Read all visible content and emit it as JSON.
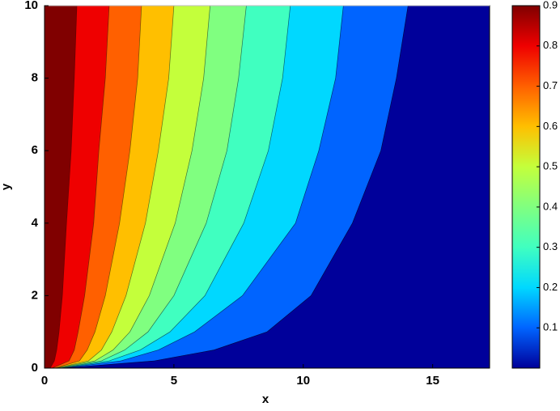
{
  "chart_data": {
    "type": "contour",
    "x_label": "x",
    "y_label": "y",
    "xlim": [
      0,
      17.2
    ],
    "ylim": [
      0,
      10
    ],
    "xticks": [
      0,
      5,
      10,
      15
    ],
    "yticks": [
      0,
      2,
      4,
      6,
      8,
      10
    ],
    "y_samples": [
      10,
      8,
      6,
      4,
      2,
      1,
      0.5,
      0.2,
      0
    ],
    "contours": [
      {
        "level": 0.9,
        "x": [
          1.25,
          1.15,
          1.03,
          0.85,
          0.69,
          0.56,
          0.47,
          0.38,
          0.22
        ]
      },
      {
        "level": 0.8,
        "x": [
          2.5,
          2.35,
          2.1,
          1.9,
          1.55,
          1.3,
          1.15,
          0.95,
          0.3
        ]
      },
      {
        "level": 0.7,
        "x": [
          3.75,
          3.6,
          3.3,
          2.9,
          2.35,
          1.95,
          1.65,
          1.35,
          0.4
        ]
      },
      {
        "level": 0.6,
        "x": [
          5,
          4.8,
          4.4,
          3.9,
          3.15,
          2.6,
          2.2,
          1.7,
          0.45
        ]
      },
      {
        "level": 0.5,
        "x": [
          6.4,
          6.15,
          5.7,
          5.05,
          4.05,
          3.3,
          2.65,
          1.95,
          0.5
        ]
      },
      {
        "level": 0.4,
        "x": [
          7.8,
          7.5,
          7.05,
          6.25,
          5.0,
          4.0,
          3.1,
          2.2,
          0.6
        ]
      },
      {
        "level": 0.3,
        "x": [
          9.5,
          9.2,
          8.65,
          7.7,
          6.2,
          4.85,
          3.7,
          2.5,
          0.65
        ]
      },
      {
        "level": 0.2,
        "x": [
          11.55,
          11.25,
          10.6,
          9.7,
          7.65,
          5.8,
          4.4,
          2.95,
          0.7
        ]
      },
      {
        "level": 0.1,
        "x": [
          14.05,
          13.6,
          13.0,
          11.9,
          10.3,
          8.6,
          6.55,
          4.25,
          0.75
        ]
      }
    ],
    "fill_colors": [
      "#800000",
      "#ef0000",
      "#ff6000",
      "#ffbf00",
      "#c4ff3b",
      "#80ff80",
      "#40ffc0",
      "#00d8ff",
      "#0064ff",
      "#00009a"
    ],
    "colorbar_lim": [
      0,
      0.9
    ],
    "colorbar_ticks": [
      0.1,
      0.2,
      0.3,
      0.4,
      0.5,
      0.6,
      0.7,
      0.8,
      0.9
    ]
  }
}
